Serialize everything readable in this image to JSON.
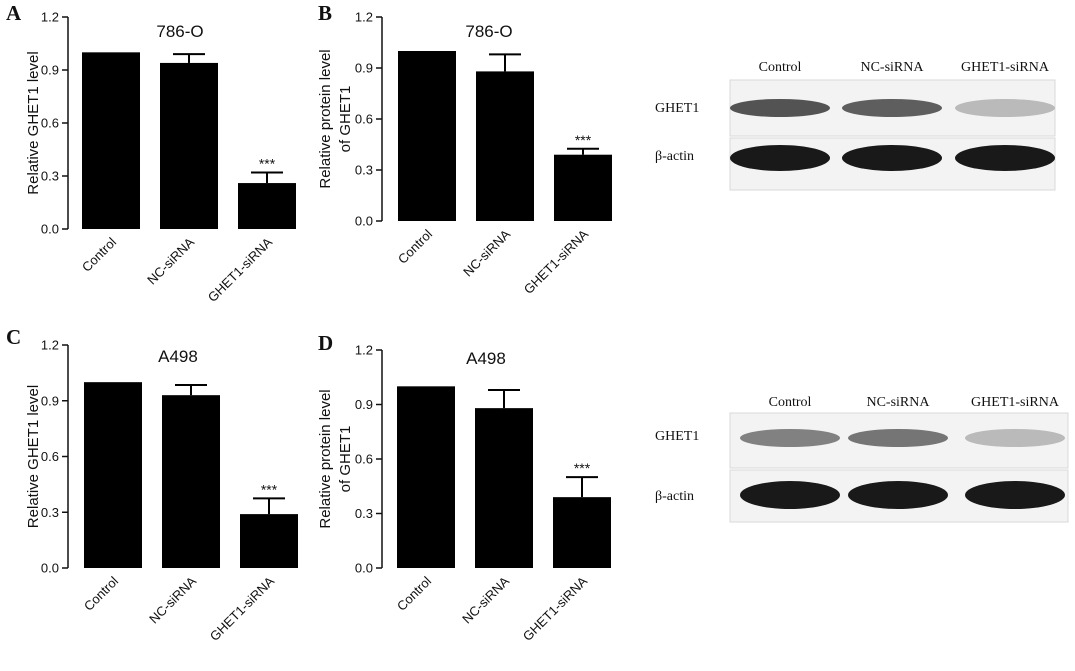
{
  "chart_data": [
    {
      "panel": "A",
      "type": "bar",
      "title": "786-O",
      "ylabel": "Relative GHET1 level",
      "categories": [
        "Control",
        "NC-siRNA",
        "GHET1-siRNA"
      ],
      "values": [
        1.0,
        0.94,
        0.26
      ],
      "errors": [
        0,
        0.05,
        0.06
      ],
      "significance": [
        "",
        "",
        "***"
      ],
      "ylim": [
        0,
        1.2
      ],
      "yticks": [
        "0.0",
        "0.3",
        "0.6",
        "0.9",
        "1.2"
      ]
    },
    {
      "panel": "B",
      "type": "bar",
      "title": "786-O",
      "ylabel": "Relative protein level",
      "ylabel2": "of GHET1",
      "categories": [
        "Control",
        "NC-siRNA",
        "GHET1-siRNA"
      ],
      "values": [
        1.0,
        0.88,
        0.39
      ],
      "errors": [
        0,
        0.1,
        0.035
      ],
      "significance": [
        "",
        "",
        "***"
      ],
      "ylim": [
        0,
        1.2
      ],
      "yticks": [
        "0.0",
        "0.3",
        "0.6",
        "0.9",
        "1.2"
      ]
    },
    {
      "panel": "C",
      "type": "bar",
      "title": "A498",
      "ylabel": "Relative GHET1 level",
      "categories": [
        "Control",
        "NC-siRNA",
        "GHET1-siRNA"
      ],
      "values": [
        1.0,
        0.93,
        0.29
      ],
      "errors": [
        0,
        0.055,
        0.085
      ],
      "significance": [
        "",
        "",
        "***"
      ],
      "ylim": [
        0,
        1.2
      ],
      "yticks": [
        "0.0",
        "0.3",
        "0.6",
        "0.9",
        "1.2"
      ]
    },
    {
      "panel": "D",
      "type": "bar",
      "title": "A498",
      "ylabel": "Relative protein level",
      "ylabel2": "of GHET1",
      "categories": [
        "Control",
        "NC-siRNA",
        "GHET1-siRNA"
      ],
      "values": [
        1.0,
        0.88,
        0.39
      ],
      "errors": [
        0,
        0.1,
        0.11
      ],
      "significance": [
        "",
        "",
        "***"
      ],
      "ylim": [
        0,
        1.2
      ],
      "yticks": [
        "0.0",
        "0.3",
        "0.6",
        "0.9",
        "1.2"
      ]
    }
  ],
  "blots": [
    {
      "lanes": [
        "Control",
        "NC-siRNA",
        "GHET1-siRNA"
      ],
      "rows": [
        {
          "label": "GHET1",
          "intensity": [
            0.75,
            0.7,
            0.3
          ]
        },
        {
          "label": "β-actin",
          "intensity": [
            1.0,
            1.0,
            1.0
          ]
        }
      ]
    },
    {
      "lanes": [
        "Control",
        "NC-siRNA",
        "GHET1-siRNA"
      ],
      "rows": [
        {
          "label": "GHET1",
          "intensity": [
            0.55,
            0.6,
            0.3
          ]
        },
        {
          "label": "β-actin",
          "intensity": [
            1.0,
            1.0,
            1.0
          ]
        }
      ]
    }
  ]
}
